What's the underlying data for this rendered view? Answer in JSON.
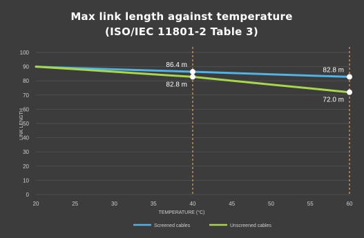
{
  "chart_data": {
    "type": "line",
    "title_line1": "Max link length against temperature",
    "title_line2": "(ISO/IEC 11801-2 Table 3)",
    "xlabel": "TEMPERATURE (°C)",
    "ylabel": "LINK LENGTH",
    "x": [
      20,
      25,
      30,
      35,
      40,
      45,
      50,
      55,
      60
    ],
    "xlim": [
      20,
      60
    ],
    "ylim": [
      0,
      100
    ],
    "yticks": [
      0,
      10,
      20,
      30,
      40,
      50,
      60,
      70,
      80,
      90,
      100
    ],
    "grid": true,
    "legend_position": "bottom",
    "series": [
      {
        "name": "Screened cables",
        "color": "#4fb3e6",
        "values": [
          90,
          89,
          88.1,
          87.3,
          86.4,
          85.5,
          84.6,
          83.7,
          82.8
        ]
      },
      {
        "name": "Unscreened cables",
        "color": "#a8d84a",
        "values": [
          90,
          88.2,
          86.4,
          84.6,
          82.8,
          80.1,
          77.4,
          74.7,
          72.0
        ]
      }
    ],
    "vertical_markers": [
      {
        "x": 40,
        "color": "#e7a45a"
      },
      {
        "x": 60,
        "color": "#e7a45a"
      }
    ],
    "annotations": [
      {
        "text": "86.4 m",
        "x": 40,
        "y": 86.4,
        "placement": "above-left"
      },
      {
        "text": "82.8 m",
        "x": 40,
        "y": 82.8,
        "placement": "below-left"
      },
      {
        "text": "82.8 m",
        "x": 60,
        "y": 82.8,
        "placement": "above-left"
      },
      {
        "text": "72.0 m",
        "x": 60,
        "y": 72.0,
        "placement": "below-left"
      }
    ]
  }
}
